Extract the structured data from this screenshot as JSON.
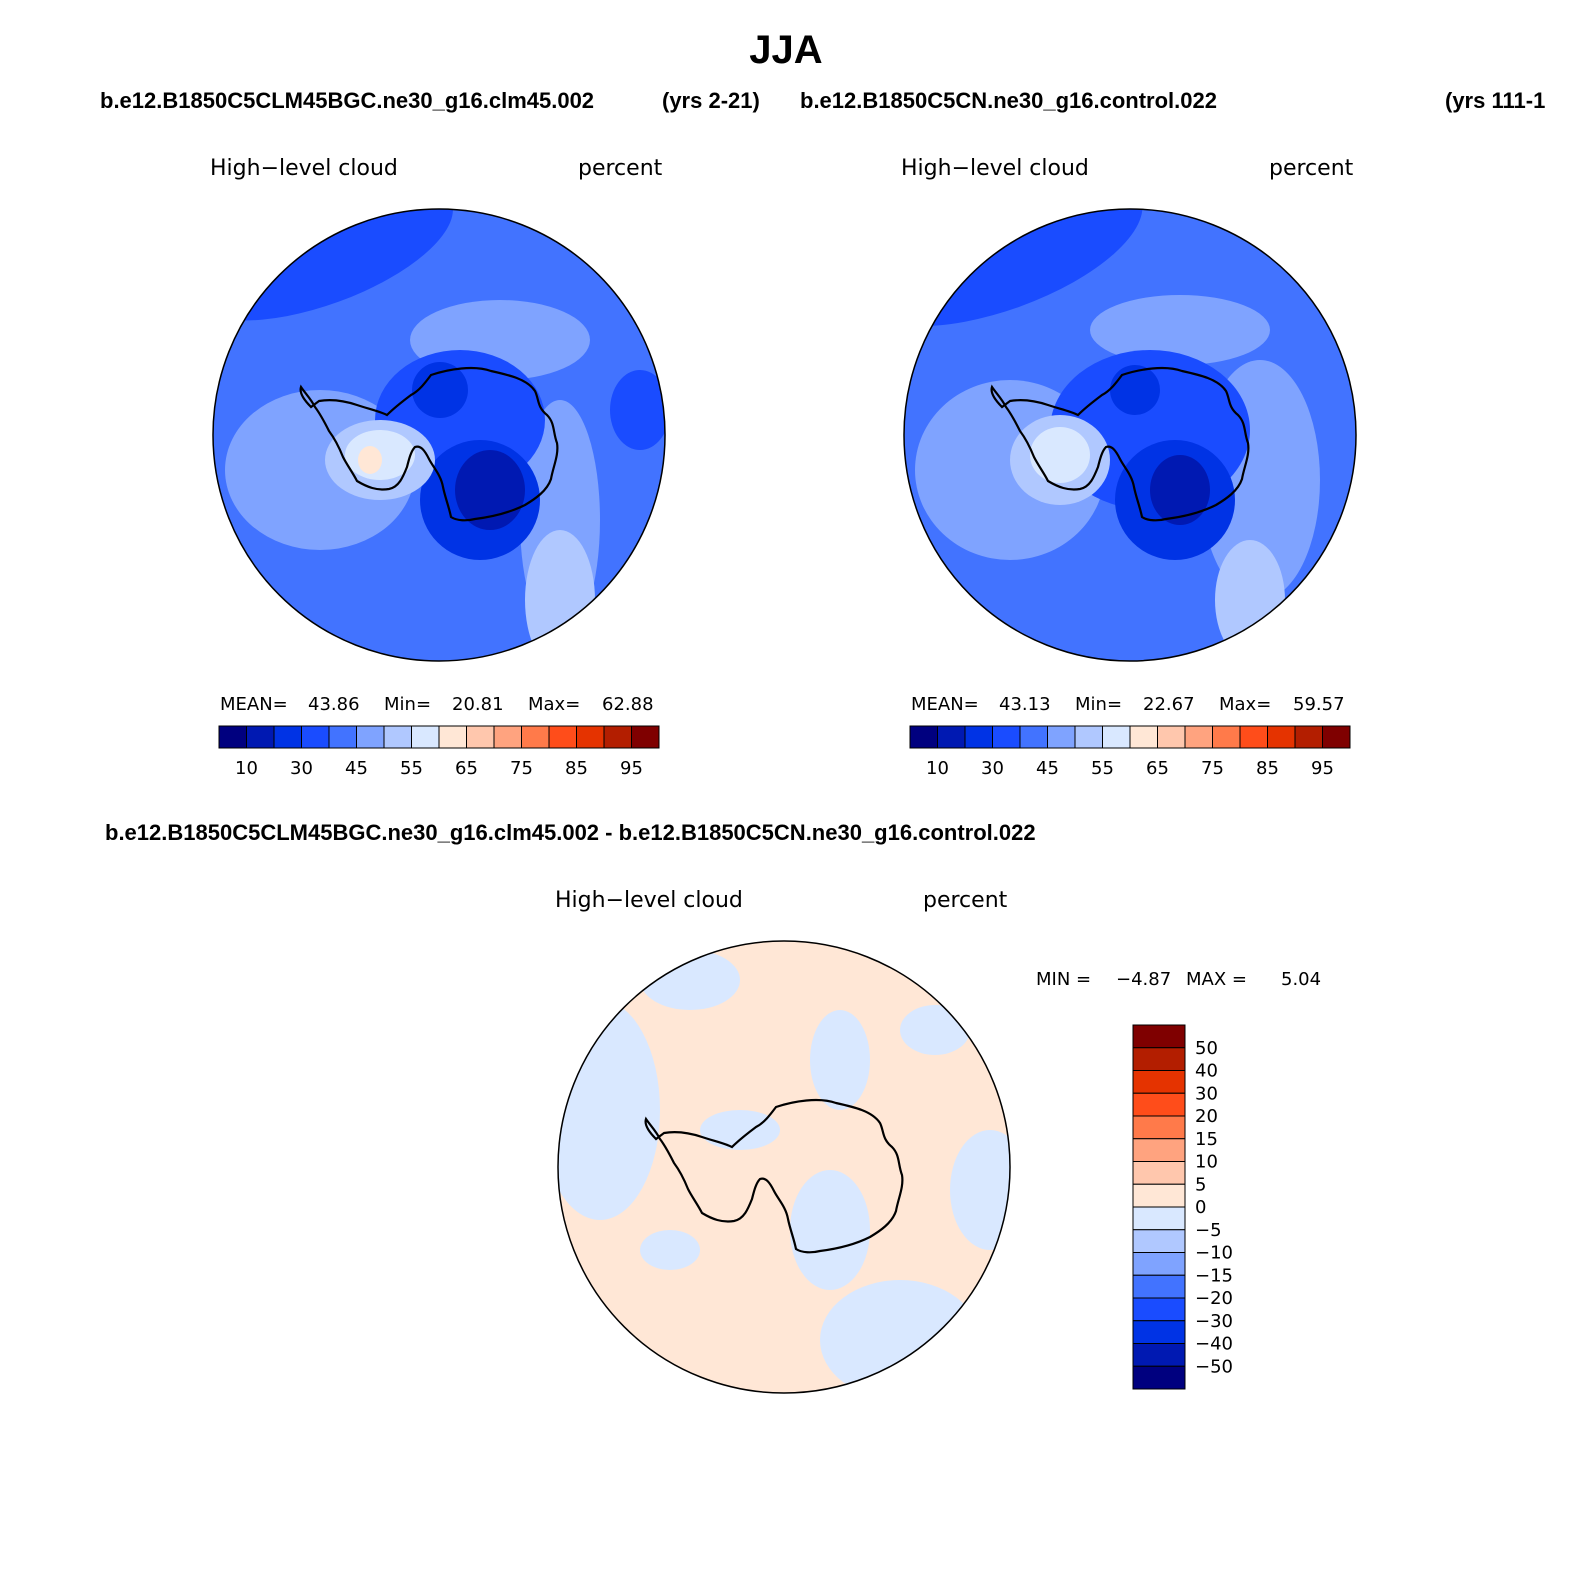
{
  "title": "JJA",
  "case_top_left": "b.e12.B1850C5CLM45BGC.ne30_g16.clm45.002",
  "years_top_left": "(yrs 2-21)",
  "case_top_right": "b.e12.B1850C5CN.ne30_g16.control.022",
  "years_top_right": "(yrs 111-1",
  "case_bottom": "b.e12.B1850C5CLM45BGC.ne30_g16.clm45.002 - b.e12.B1850C5CN.ne30_g16.control.022",
  "chart_data": [
    {
      "type": "heatmap",
      "projection": "south polar stereographic",
      "variable": "High−level cloud",
      "units": "percent",
      "stats": {
        "mean_label": "MEAN=",
        "mean": "43.86",
        "min_label": "Min=",
        "min": "20.81",
        "max_label": "Max=",
        "max": "62.88"
      },
      "colorbar": {
        "orientation": "horizontal",
        "tick_labels": [
          "10",
          "30",
          "45",
          "55",
          "65",
          "75",
          "85",
          "95"
        ],
        "colors": [
          "#00007f",
          "#0019b2",
          "#0033e5",
          "#1a4cff",
          "#4273ff",
          "#7fa3ff",
          "#b0c8ff",
          "#d9e8ff",
          "#ffe7d6",
          "#ffc7ad",
          "#ffa37f",
          "#ff7a4a",
          "#ff4d1a",
          "#e53300",
          "#b31e00",
          "#7f0000"
        ]
      }
    },
    {
      "type": "heatmap",
      "projection": "south polar stereographic",
      "variable": "High−level cloud",
      "units": "percent",
      "stats": {
        "mean_label": "MEAN=",
        "mean": "43.13",
        "min_label": "Min=",
        "min": "22.67",
        "max_label": "Max=",
        "max": "59.57"
      },
      "colorbar": {
        "orientation": "horizontal",
        "tick_labels": [
          "10",
          "30",
          "45",
          "55",
          "65",
          "75",
          "85",
          "95"
        ],
        "colors": [
          "#00007f",
          "#0019b2",
          "#0033e5",
          "#1a4cff",
          "#4273ff",
          "#7fa3ff",
          "#b0c8ff",
          "#d9e8ff",
          "#ffe7d6",
          "#ffc7ad",
          "#ffa37f",
          "#ff7a4a",
          "#ff4d1a",
          "#e53300",
          "#b31e00",
          "#7f0000"
        ]
      }
    },
    {
      "type": "heatmap",
      "projection": "south polar stereographic",
      "variable": "High−level cloud",
      "units": "percent",
      "stats": {
        "min_label": "MIN =",
        "min": "−4.87",
        "max_label": "MAX =",
        "max": "5.04"
      },
      "colorbar": {
        "orientation": "vertical",
        "tick_labels": [
          "50",
          "40",
          "30",
          "20",
          "15",
          "10",
          "5",
          "0",
          "−5",
          "−10",
          "−15",
          "−20",
          "−30",
          "−40",
          "−50"
        ],
        "colors": [
          "#7f0000",
          "#b31e00",
          "#e53300",
          "#ff4d1a",
          "#ff7a4a",
          "#ffa37f",
          "#ffc7ad",
          "#ffe7d6",
          "#d9e8ff",
          "#b0c8ff",
          "#7fa3ff",
          "#4273ff",
          "#1a4cff",
          "#0033e5",
          "#0019b2",
          "#00007f"
        ]
      }
    }
  ]
}
